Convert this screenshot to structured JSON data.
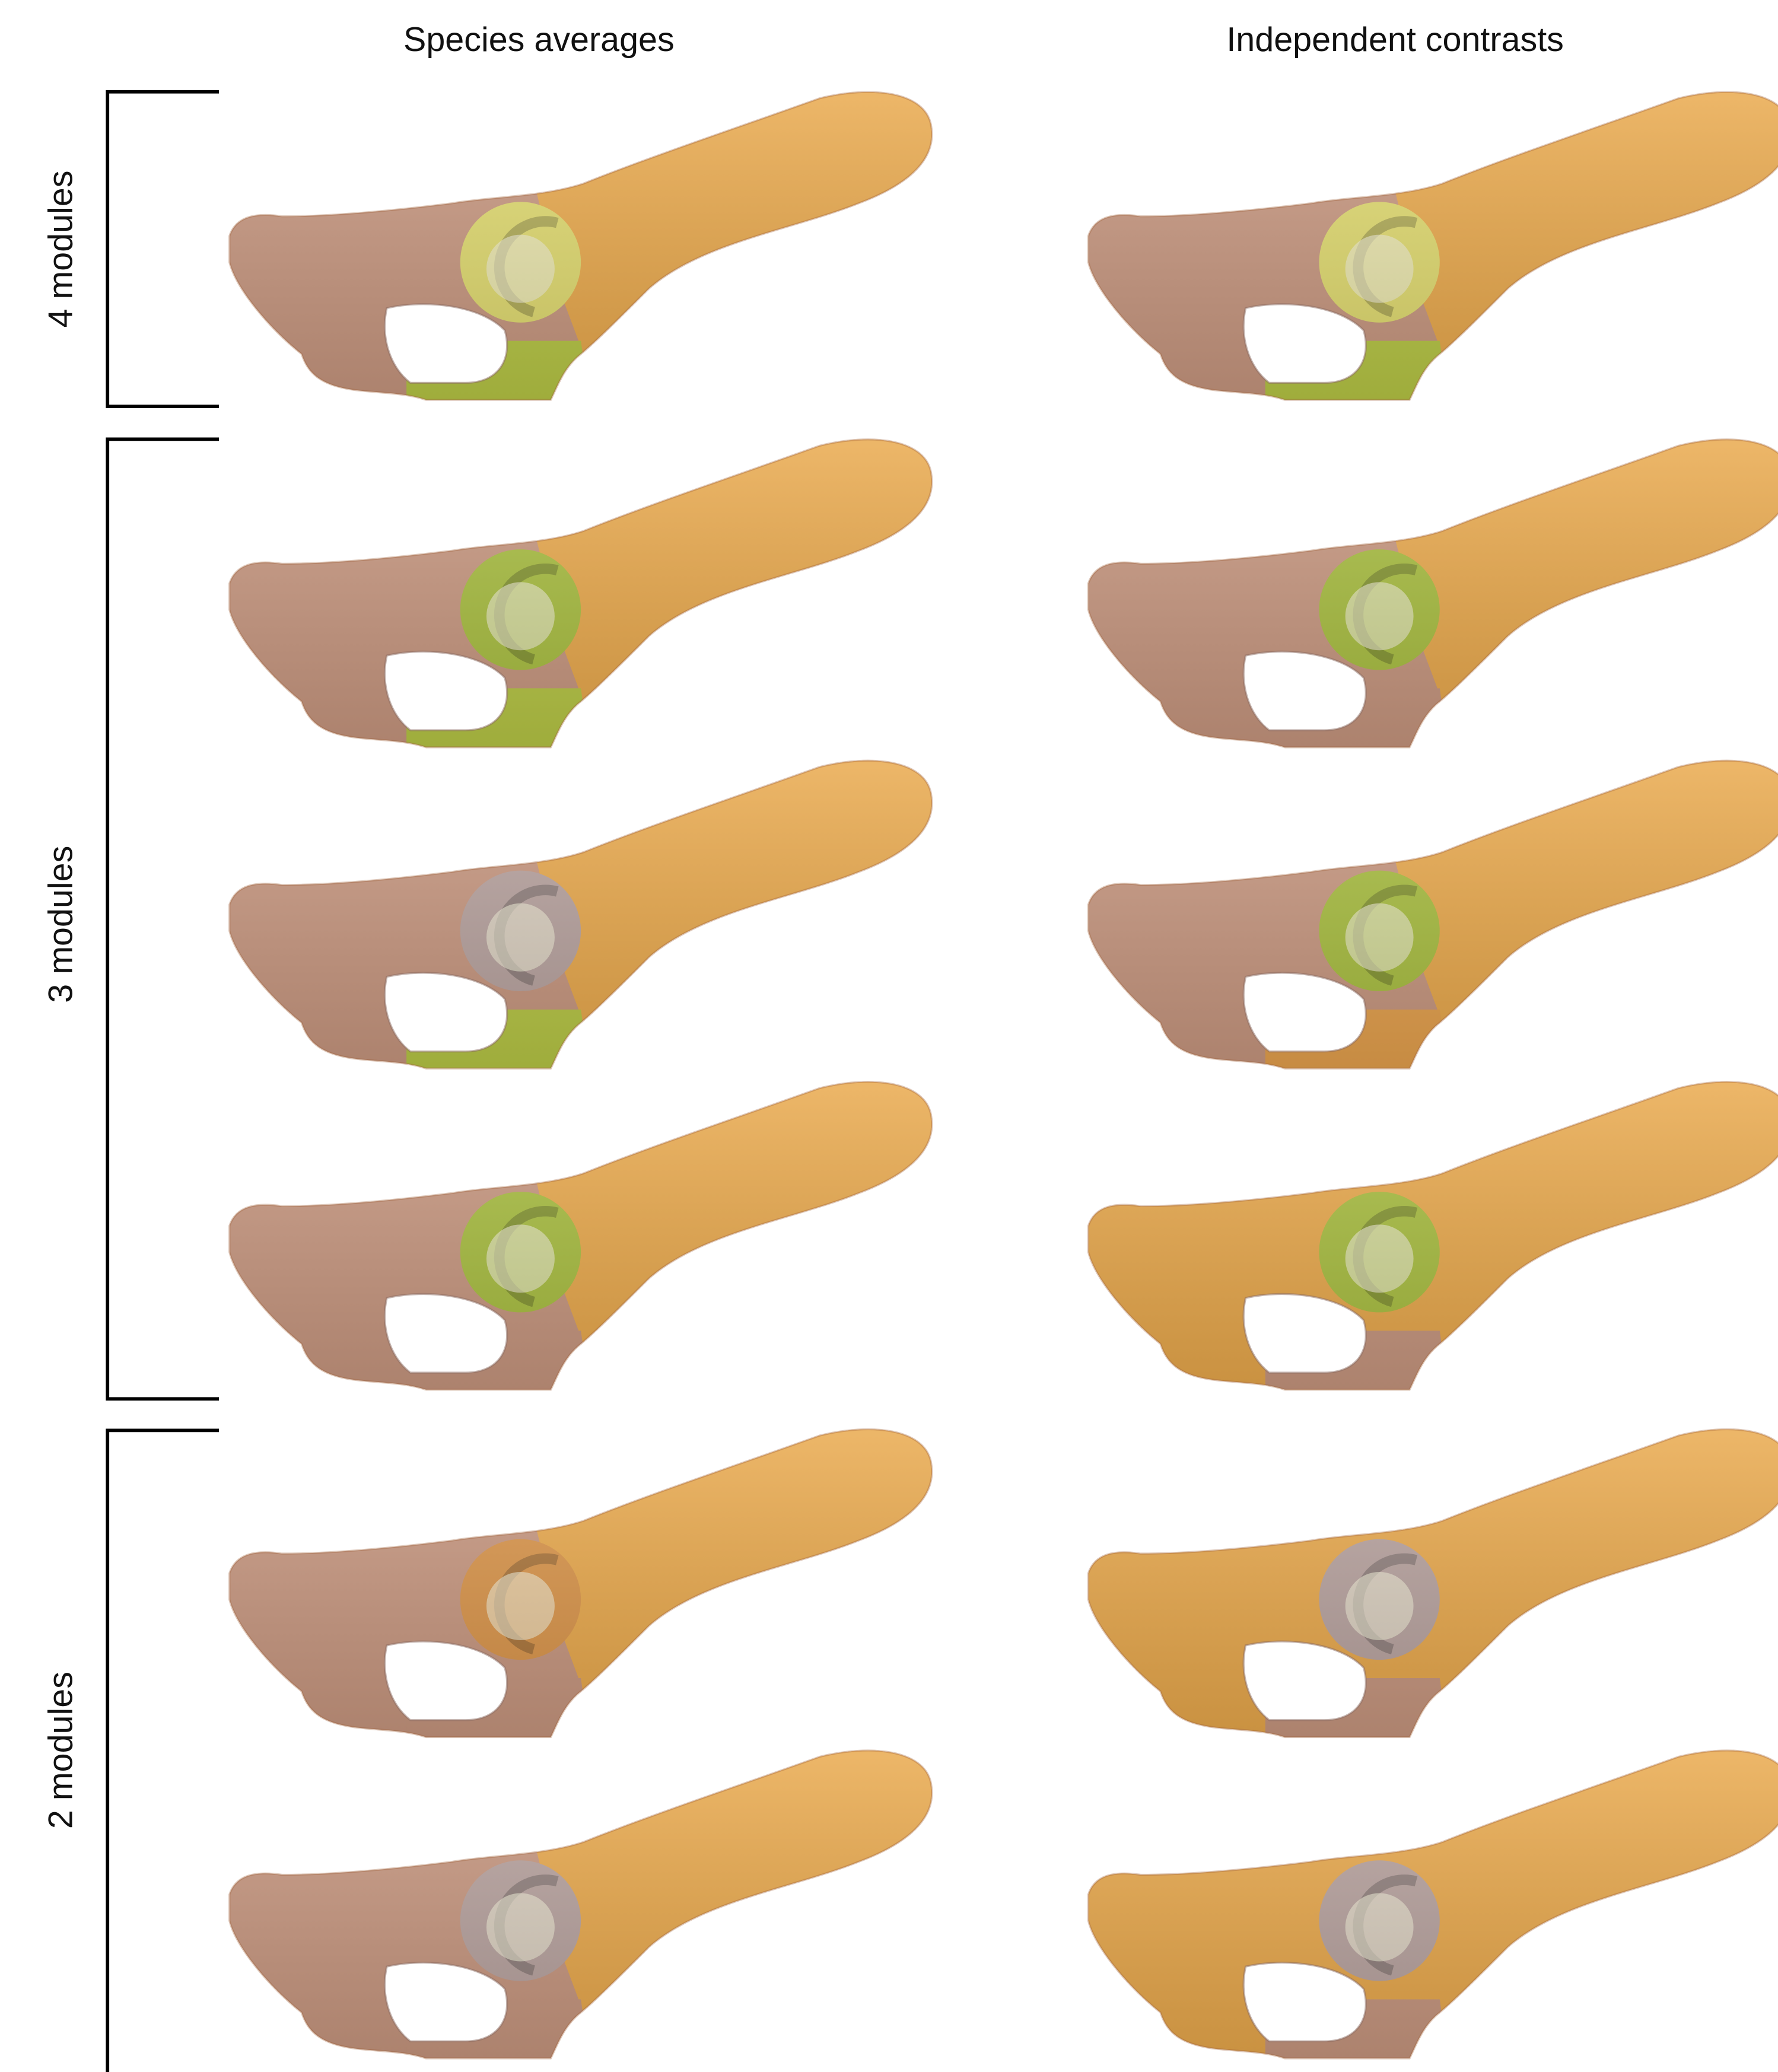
{
  "headers": [
    "Species averages",
    "Independent contrasts"
  ],
  "groups": [
    "4 modules",
    "3 modules",
    "2 modules"
  ]
}
